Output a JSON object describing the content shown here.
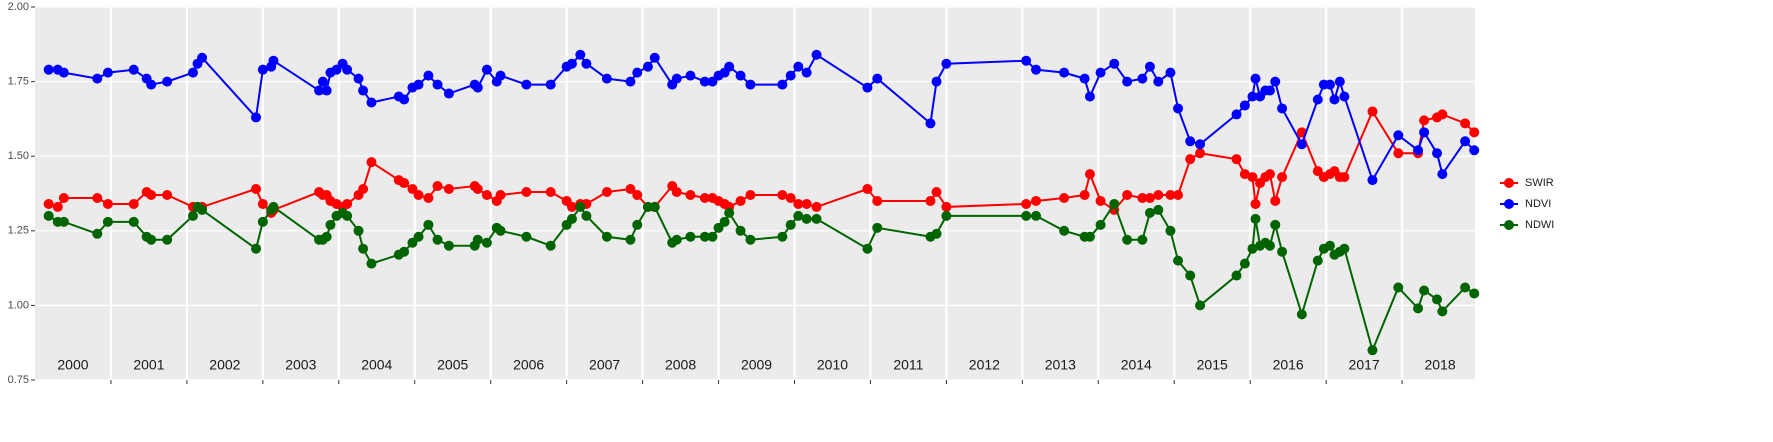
{
  "chart_data": {
    "type": "line",
    "x": [
      2000.18,
      2000.3,
      2000.38,
      2000.82,
      2000.96,
      2001.3,
      2001.47,
      2001.53,
      2001.74,
      2002.08,
      2002.14,
      2002.2,
      2002.91,
      2003.0,
      2003.11,
      2003.14,
      2003.74,
      2003.79,
      2003.84,
      2003.89,
      2003.97,
      2004.05,
      2004.11,
      2004.26,
      2004.32,
      2004.43,
      2004.79,
      2004.86,
      2004.97,
      2005.05,
      2005.18,
      2005.3,
      2005.45,
      2005.79,
      2005.83,
      2005.95,
      2006.08,
      2006.13,
      2006.47,
      2006.79,
      2007.0,
      2007.07,
      2007.18,
      2007.26,
      2007.53,
      2007.84,
      2007.93,
      2008.07,
      2008.16,
      2008.39,
      2008.45,
      2008.63,
      2008.82,
      2008.92,
      2009.0,
      2009.08,
      2009.14,
      2009.29,
      2009.42,
      2009.84,
      2009.95,
      2010.05,
      2010.16,
      2010.29,
      2010.96,
      2011.09,
      2011.79,
      2011.87,
      2012.0,
      2013.05,
      2013.18,
      2013.55,
      2013.82,
      2013.89,
      2014.03,
      2014.21,
      2014.38,
      2014.58,
      2014.68,
      2014.79,
      2014.95,
      2015.05,
      2015.21,
      2015.34,
      2015.82,
      2015.93,
      2016.03,
      2016.07,
      2016.13,
      2016.2,
      2016.26,
      2016.33,
      2016.42,
      2016.68,
      2016.89,
      2016.97,
      2017.05,
      2017.11,
      2017.18,
      2017.24,
      2017.61,
      2017.95,
      2018.21,
      2018.29,
      2018.46,
      2018.53,
      2018.83,
      2018.95
    ],
    "series": [
      {
        "name": "SWIR",
        "color": "#ff0000",
        "values": [
          1.34,
          1.33,
          1.36,
          1.36,
          1.34,
          1.34,
          1.38,
          1.37,
          1.37,
          1.33,
          1.33,
          1.33,
          1.39,
          1.34,
          1.31,
          1.32,
          1.38,
          1.37,
          1.37,
          1.35,
          1.34,
          1.33,
          1.34,
          1.37,
          1.39,
          1.48,
          1.42,
          1.41,
          1.39,
          1.37,
          1.36,
          1.4,
          1.39,
          1.4,
          1.39,
          1.37,
          1.35,
          1.37,
          1.38,
          1.38,
          1.35,
          1.33,
          1.34,
          1.34,
          1.38,
          1.39,
          1.37,
          1.33,
          1.33,
          1.4,
          1.38,
          1.37,
          1.36,
          1.36,
          1.35,
          1.34,
          1.33,
          1.35,
          1.37,
          1.37,
          1.36,
          1.34,
          1.34,
          1.33,
          1.39,
          1.35,
          1.35,
          1.38,
          1.33,
          1.34,
          1.35,
          1.36,
          1.37,
          1.44,
          1.35,
          1.32,
          1.37,
          1.36,
          1.36,
          1.37,
          1.37,
          1.37,
          1.49,
          1.51,
          1.49,
          1.44,
          1.43,
          1.34,
          1.41,
          1.43,
          1.44,
          1.35,
          1.43,
          1.58,
          1.45,
          1.43,
          1.44,
          1.45,
          1.43,
          1.43,
          1.65,
          1.51,
          1.51,
          1.62,
          1.63,
          1.64,
          1.61,
          1.58
        ]
      },
      {
        "name": "NDVI",
        "color": "#0000ff",
        "values": [
          1.79,
          1.79,
          1.78,
          1.76,
          1.78,
          1.79,
          1.76,
          1.74,
          1.75,
          1.78,
          1.81,
          1.83,
          1.63,
          1.79,
          1.8,
          1.82,
          1.72,
          1.75,
          1.72,
          1.78,
          1.79,
          1.81,
          1.79,
          1.76,
          1.72,
          1.68,
          1.7,
          1.69,
          1.73,
          1.74,
          1.77,
          1.74,
          1.71,
          1.74,
          1.73,
          1.79,
          1.75,
          1.77,
          1.74,
          1.74,
          1.8,
          1.81,
          1.84,
          1.81,
          1.76,
          1.75,
          1.78,
          1.8,
          1.83,
          1.74,
          1.76,
          1.77,
          1.75,
          1.75,
          1.77,
          1.78,
          1.8,
          1.77,
          1.74,
          1.74,
          1.77,
          1.8,
          1.78,
          1.84,
          1.73,
          1.76,
          1.61,
          1.75,
          1.81,
          1.82,
          1.79,
          1.78,
          1.76,
          1.7,
          1.78,
          1.81,
          1.75,
          1.76,
          1.8,
          1.75,
          1.78,
          1.66,
          1.55,
          1.54,
          1.64,
          1.67,
          1.7,
          1.76,
          1.7,
          1.72,
          1.72,
          1.75,
          1.66,
          1.54,
          1.69,
          1.74,
          1.74,
          1.69,
          1.75,
          1.7,
          1.42,
          1.57,
          1.52,
          1.58,
          1.51,
          1.44,
          1.55,
          1.52
        ]
      },
      {
        "name": "NDWI",
        "color": "#006400",
        "values": [
          1.3,
          1.28,
          1.28,
          1.24,
          1.28,
          1.28,
          1.23,
          1.22,
          1.22,
          1.3,
          1.33,
          1.32,
          1.19,
          1.28,
          1.32,
          1.33,
          1.22,
          1.22,
          1.23,
          1.27,
          1.3,
          1.31,
          1.3,
          1.25,
          1.19,
          1.14,
          1.17,
          1.18,
          1.21,
          1.23,
          1.27,
          1.22,
          1.2,
          1.2,
          1.22,
          1.21,
          1.26,
          1.25,
          1.23,
          1.2,
          1.27,
          1.29,
          1.33,
          1.3,
          1.23,
          1.22,
          1.27,
          1.33,
          1.33,
          1.21,
          1.22,
          1.23,
          1.23,
          1.23,
          1.26,
          1.28,
          1.31,
          1.25,
          1.22,
          1.23,
          1.27,
          1.3,
          1.29,
          1.29,
          1.19,
          1.26,
          1.23,
          1.24,
          1.3,
          1.3,
          1.3,
          1.25,
          1.23,
          1.23,
          1.27,
          1.34,
          1.22,
          1.22,
          1.31,
          1.32,
          1.25,
          1.15,
          1.1,
          1.0,
          1.1,
          1.14,
          1.19,
          1.29,
          1.2,
          1.21,
          1.2,
          1.27,
          1.18,
          0.97,
          1.15,
          1.19,
          1.2,
          1.17,
          1.18,
          1.19,
          0.85,
          1.06,
          0.99,
          1.05,
          1.02,
          0.98,
          1.06,
          1.04
        ]
      }
    ],
    "xlim": [
      2000,
      2018.96
    ],
    "xticks": [
      2001,
      2002,
      2003,
      2004,
      2005,
      2006,
      2007,
      2008,
      2009,
      2010,
      2011,
      2012,
      2013,
      2014,
      2015,
      2016,
      2017,
      2018
    ],
    "year_labels": [
      "2000",
      "2001",
      "2002",
      "2003",
      "2004",
      "2005",
      "2006",
      "2007",
      "2008",
      "2009",
      "2010",
      "2011",
      "2012",
      "2013",
      "2014",
      "2015",
      "2016",
      "2017",
      "2018"
    ],
    "ylim": [
      0.75,
      2.0
    ],
    "yticks": [
      0.75,
      {
        "value": 1.0,
        "label": "1.00"
      },
      1.25,
      {
        "value": 1.5,
        "label": "1.50"
      },
      1.75,
      {
        "value": 2.0,
        "label": "2.00"
      }
    ],
    "grid": true,
    "legend": "right"
  }
}
